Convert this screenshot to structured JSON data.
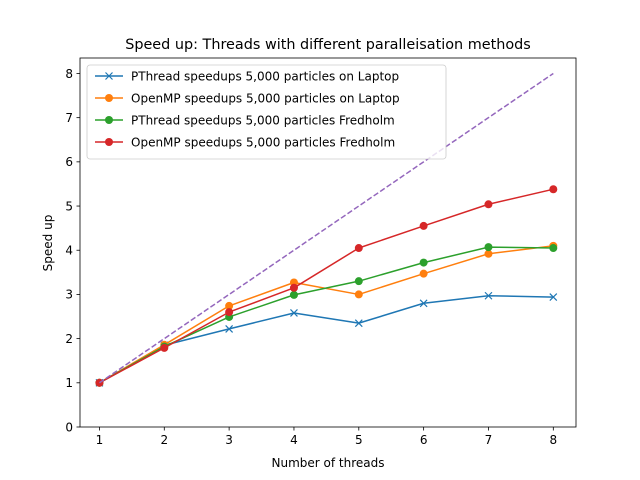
{
  "chart_data": {
    "type": "line",
    "title": "Speed up: Threads with different paralleisation methods",
    "xlabel": "Number of threads",
    "ylabel": "Speed up",
    "x": [
      1,
      2,
      3,
      4,
      5,
      6,
      7,
      8
    ],
    "xlim": [
      0.7,
      8.35
    ],
    "ylim": [
      0,
      8.35
    ],
    "xticks": [
      1,
      2,
      3,
      4,
      5,
      6,
      7,
      8
    ],
    "yticks": [
      0,
      1,
      2,
      3,
      4,
      5,
      6,
      7,
      8
    ],
    "grid": false,
    "legend_position": "upper-left",
    "series": [
      {
        "name": "PThread speedups 5,000 particles on Laptop",
        "color": "#1f77b4",
        "marker": "x",
        "linestyle": "solid",
        "legend": true,
        "values": [
          1.0,
          1.85,
          2.22,
          2.58,
          2.35,
          2.8,
          2.97,
          2.94
        ]
      },
      {
        "name": "OpenMP speedups 5,000 particles on Laptop",
        "color": "#ff7f0e",
        "marker": "o",
        "linestyle": "solid",
        "legend": true,
        "values": [
          1.0,
          1.86,
          2.74,
          3.27,
          3.0,
          3.47,
          3.92,
          4.1
        ]
      },
      {
        "name": "PThread speedups 5,000 particles Fredholm",
        "color": "#2ca02c",
        "marker": "o",
        "linestyle": "solid",
        "legend": true,
        "values": [
          1.0,
          1.82,
          2.49,
          2.99,
          3.3,
          3.72,
          4.07,
          4.05
        ]
      },
      {
        "name": "OpenMP speedups 5,000 particles Fredholm",
        "color": "#d62728",
        "marker": "o",
        "linestyle": "solid",
        "legend": true,
        "values": [
          1.0,
          1.79,
          2.6,
          3.15,
          4.05,
          4.55,
          5.04,
          5.38
        ]
      },
      {
        "name": "",
        "color": "#9467bd",
        "marker": "none",
        "linestyle": "dashed",
        "legend": false,
        "values": [
          1,
          2,
          3,
          4,
          5,
          6,
          7,
          8
        ]
      }
    ]
  }
}
